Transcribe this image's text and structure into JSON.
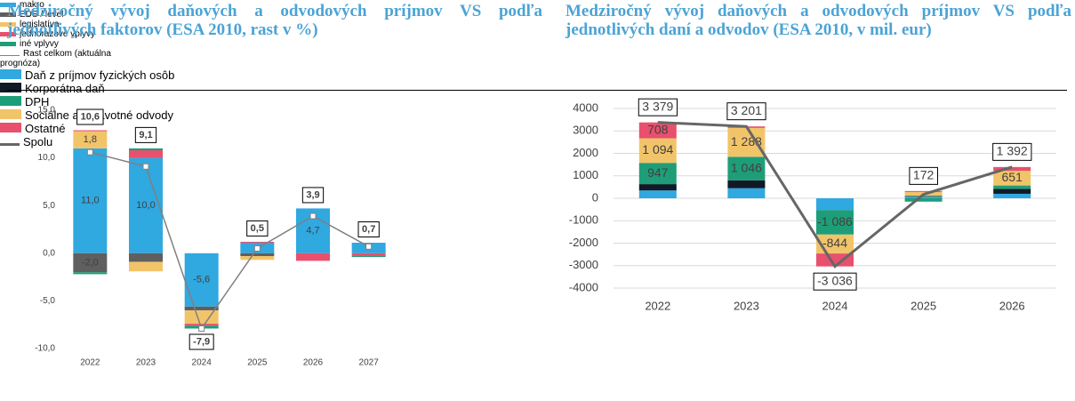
{
  "chart_data": [
    {
      "type": "bar",
      "stacked": true,
      "stack_order": "reverse",
      "title": "Medziročný vývoj daňových a odvodových príjmov VS podľa jednotlivých faktorov (ESA 2010, rast v %)",
      "categories": [
        "2022",
        "2023",
        "2024",
        "2025",
        "2026",
        "2027"
      ],
      "ylim": [
        -10,
        15
      ],
      "yticks": [
        {
          "value": -10,
          "label": "-10,0"
        },
        {
          "value": -5,
          "label": "-5,0"
        },
        {
          "value": 0,
          "label": "0,0"
        },
        {
          "value": 5,
          "label": "5,0"
        },
        {
          "value": 10,
          "label": "10,0"
        },
        {
          "value": 15,
          "label": "15,0"
        }
      ],
      "grid": false,
      "legend": "right",
      "markers": true,
      "series": [
        {
          "name": "iné vplyvy",
          "color": "#1e9e78",
          "values": [
            -0.2,
            0.2,
            -0.3,
            0.0,
            0.0,
            -0.1
          ],
          "value_labels": [
            null,
            null,
            null,
            null,
            null,
            null
          ]
        },
        {
          "name": "jednorazové vplyvy",
          "color": "#e8506e",
          "values": [
            0.1,
            0.8,
            -0.2,
            0.1,
            -0.8,
            -0.3
          ],
          "value_labels": [
            null,
            null,
            null,
            null,
            null,
            null
          ]
        },
        {
          "name": "legislatíva",
          "color": "#f2c46a",
          "values": [
            1.8,
            -1.0,
            -1.4,
            -0.4,
            0.0,
            0.0
          ],
          "value_labels": [
            "1,8",
            null,
            null,
            null,
            null,
            null
          ]
        },
        {
          "name": "EDS / level",
          "color": "#5f5f5f",
          "values": [
            -2.0,
            -0.9,
            -0.4,
            -0.3,
            0.0,
            0.0
          ],
          "value_labels": [
            "-2,0",
            null,
            null,
            null,
            null,
            null
          ]
        },
        {
          "name": "makro",
          "color": "#30a8e0",
          "values": [
            11.0,
            10.0,
            -5.6,
            1.1,
            4.7,
            1.1
          ],
          "value_labels": [
            "11,0",
            "10,0",
            "-5,6",
            null,
            "4,7",
            null
          ]
        },
        {
          "name": "Rast celkom (aktuálna prognóza)",
          "type": "line",
          "color": "#808080",
          "values": [
            10.6,
            9.1,
            -7.9,
            0.5,
            3.9,
            0.7
          ],
          "value_labels": [
            "10,6",
            "9,1",
            "-7,9",
            "0,5",
            "3,9",
            "0,7"
          ]
        }
      ]
    },
    {
      "type": "bar",
      "stacked": true,
      "stack_order": "forward",
      "title": "Medziročný vývoj daňových a odvodových príjmov VS podľa jednotlivých daní a odvodov (ESA 2010, v mil. eur)",
      "categories": [
        "2022",
        "2023",
        "2024",
        "2025",
        "2026"
      ],
      "ylim": [
        -4000,
        4000
      ],
      "yticks": [
        -4000,
        -3000,
        -2000,
        -1000,
        0,
        1000,
        2000,
        3000,
        4000
      ],
      "grid": true,
      "legend": "bottom",
      "markers": false,
      "series": [
        {
          "name": "Daň z príjmov fyzických osôb",
          "color": "#30a8e0",
          "values": [
            350,
            450,
            -530,
            80,
            200
          ],
          "value_labels": [
            null,
            null,
            null,
            null,
            null
          ]
        },
        {
          "name": "Korporátna daň",
          "color": "#101a26",
          "values": [
            280,
            350,
            0,
            20,
            220
          ],
          "value_labels": [
            null,
            null,
            null,
            null,
            null
          ]
        },
        {
          "name": "DPH",
          "color": "#1e9e78",
          "values": [
            947,
            1046,
            -1086,
            -150,
            150
          ],
          "value_labels": [
            "947",
            "1 046",
            "-1 086",
            null,
            null
          ]
        },
        {
          "name": "Sociálne a zdravotné odvody",
          "color": "#f2c46a",
          "values": [
            1094,
            1288,
            -844,
            180,
            651
          ],
          "value_labels": [
            "1 094",
            "1 288",
            "-844",
            null,
            "651"
          ]
        },
        {
          "name": "Ostatné",
          "color": "#e8506e",
          "values": [
            708,
            67,
            -576,
            42,
            171
          ],
          "value_labels": [
            "708",
            null,
            null,
            null,
            null
          ]
        },
        {
          "name": "Spolu",
          "type": "line",
          "color": "#666666",
          "values": [
            3379,
            3201,
            -3036,
            172,
            1392
          ],
          "value_labels": [
            "3 379",
            "3 201",
            "-3 036",
            "172",
            "1 392"
          ]
        }
      ]
    }
  ]
}
